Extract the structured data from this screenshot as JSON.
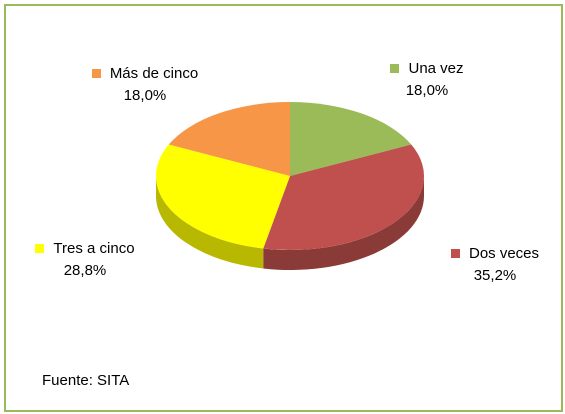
{
  "chart_data": {
    "type": "pie",
    "categories": [
      "Una vez",
      "Dos veces",
      "Tres a cinco",
      "Más de cinco"
    ],
    "values": [
      18.0,
      35.2,
      28.8,
      18.0
    ],
    "value_labels": [
      "18,0%",
      "35,2%",
      "28,8%",
      "18,0%"
    ],
    "colors": [
      "#9bbb59",
      "#c0504d",
      "#ffff00",
      "#f79646"
    ],
    "source": "Fuente: SITA"
  }
}
